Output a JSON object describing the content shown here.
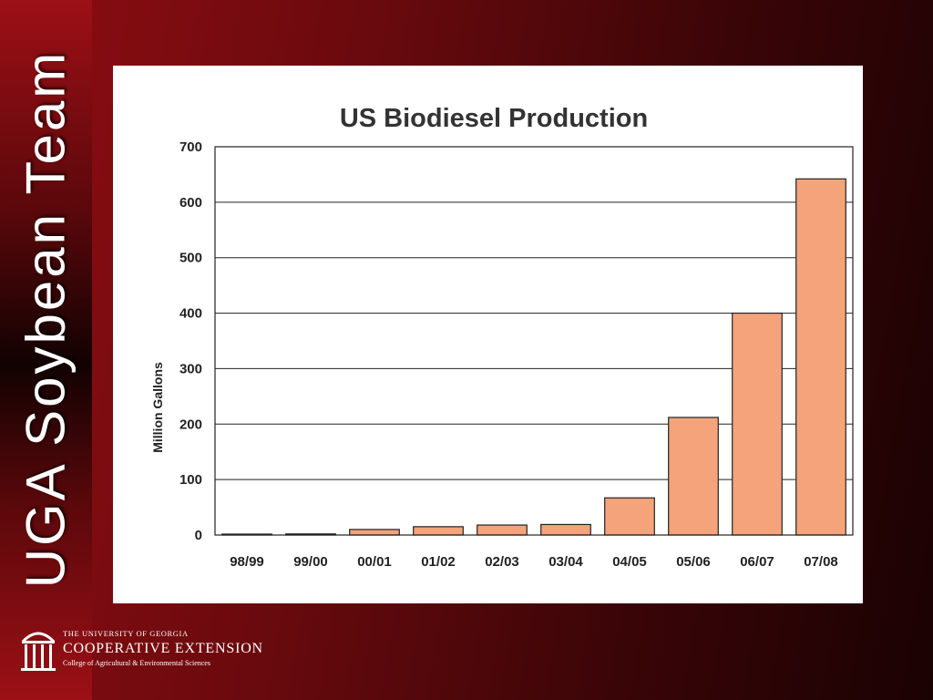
{
  "slide": {
    "sidebar_title": "UGA Soybean Team"
  },
  "footer": {
    "university": "THE UNIVERSITY OF GEORGIA",
    "extension": "COOPERATIVE EXTENSION",
    "college": "College of Agricultural & Environmental Sciences",
    "logo_icon": "arch-icon"
  },
  "colors": {
    "bar_fill": "#f4a37a",
    "bar_stroke": "#222222",
    "grid": "#222222",
    "text": "#333333"
  },
  "chart_data": {
    "type": "bar",
    "title": "US Biodiesel Production",
    "xlabel": "",
    "ylabel": "Million Gallons",
    "categories": [
      "98/99",
      "99/00",
      "00/01",
      "01/02",
      "02/03",
      "03/04",
      "04/05",
      "05/06",
      "06/07",
      "07/08"
    ],
    "values": [
      0.5,
      2,
      10,
      15,
      18,
      19,
      67,
      212,
      400,
      642
    ],
    "ylim": [
      0,
      700
    ],
    "yticks": [
      0,
      100,
      200,
      300,
      400,
      500,
      600,
      700
    ],
    "grid": true,
    "legend": "none"
  }
}
